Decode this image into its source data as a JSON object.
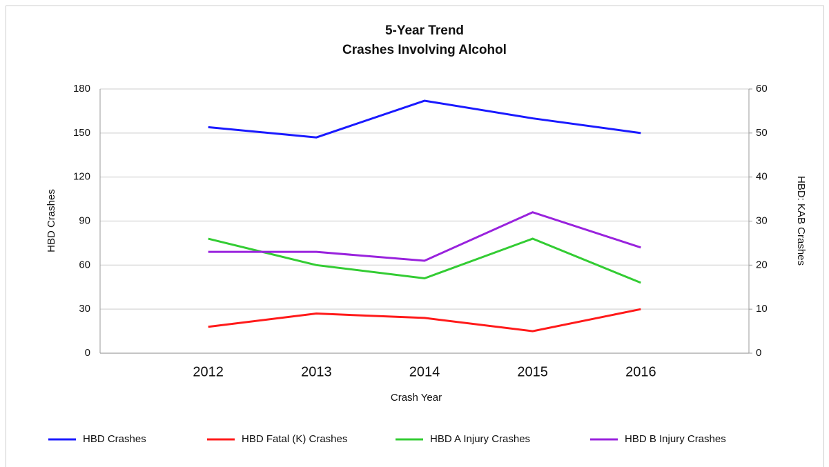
{
  "chart_data": {
    "type": "line",
    "title": "5-Year Trend",
    "subtitle": "Crashes Involving Alcohol",
    "x_label": "Crash Year",
    "y_label": "HBD Crashes",
    "y2_label": "HBD: KAB Crashes",
    "categories": [
      "2012",
      "2013",
      "2014",
      "2015",
      "2016"
    ],
    "series": [
      {
        "name": "HBD Crashes",
        "color": "#1a1aff",
        "values": [
          154,
          147,
          172,
          160,
          150
        ]
      },
      {
        "name": "HBD Fatal (K) Crashes",
        "color": "#ff1a1a",
        "axis": "y2",
        "values": [
          6,
          9,
          8,
          5,
          10
        ]
      },
      {
        "name": "HBD A Injury Crashes",
        "color": "#33cc33",
        "axis": "y2",
        "values": [
          26,
          20,
          17,
          26,
          16
        ]
      },
      {
        "name": "HBD B Injury Crashes",
        "color": "#9922dd",
        "axis": "y2",
        "values": [
          23,
          23,
          21,
          32,
          24
        ]
      }
    ],
    "ylim": [
      0,
      180
    ],
    "yticks": [
      0,
      30,
      60,
      90,
      120,
      150,
      180
    ],
    "y2lim": [
      0,
      60
    ],
    "y2ticks": [
      0,
      10,
      20,
      30,
      40,
      50,
      60
    ],
    "grid": true,
    "legend": "bottom"
  }
}
